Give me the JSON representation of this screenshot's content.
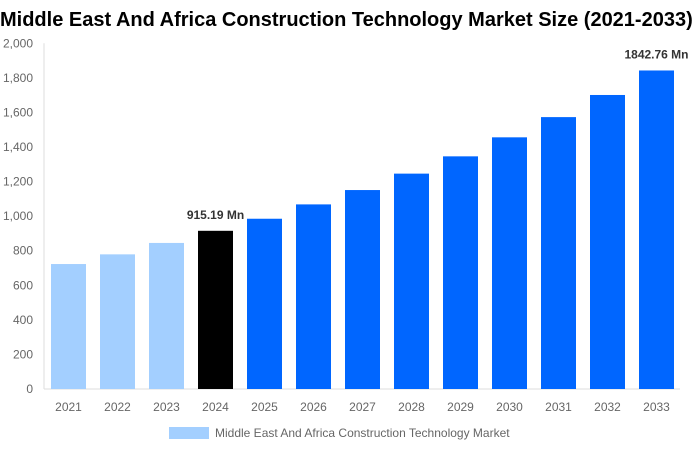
{
  "chart_data": {
    "type": "bar",
    "title": "Middle East And Africa Construction Technology Market Size (2021-2033)",
    "categories": [
      "2021",
      "2022",
      "2023",
      "2024",
      "2025",
      "2026",
      "2027",
      "2028",
      "2029",
      "2030",
      "2031",
      "2032",
      "2033"
    ],
    "series": [
      {
        "name": "Middle East And Africa Construction Technology Market",
        "values": [
          723,
          779,
          845,
          915.19,
          985,
          1068,
          1151,
          1246,
          1346,
          1456,
          1573,
          1701,
          1842.76
        ]
      }
    ],
    "bar_colors": [
      "#a3cfff",
      "#a3cfff",
      "#a3cfff",
      "#000000",
      "#0066ff",
      "#0066ff",
      "#0066ff",
      "#0066ff",
      "#0066ff",
      "#0066ff",
      "#0066ff",
      "#0066ff",
      "#0066ff"
    ],
    "data_labels": [
      {
        "index": 3,
        "text": "915.19 Mn"
      },
      {
        "index": 12,
        "text": "1842.76 Mn"
      }
    ],
    "yticks": [
      "0",
      "200",
      "400",
      "600",
      "800",
      "1,000",
      "1,200",
      "1,400",
      "1,600",
      "1,800",
      "2,000"
    ],
    "ylim": [
      0,
      2000
    ],
    "xlabel": "",
    "ylabel": "",
    "grid": false,
    "legend_position": "bottom"
  }
}
